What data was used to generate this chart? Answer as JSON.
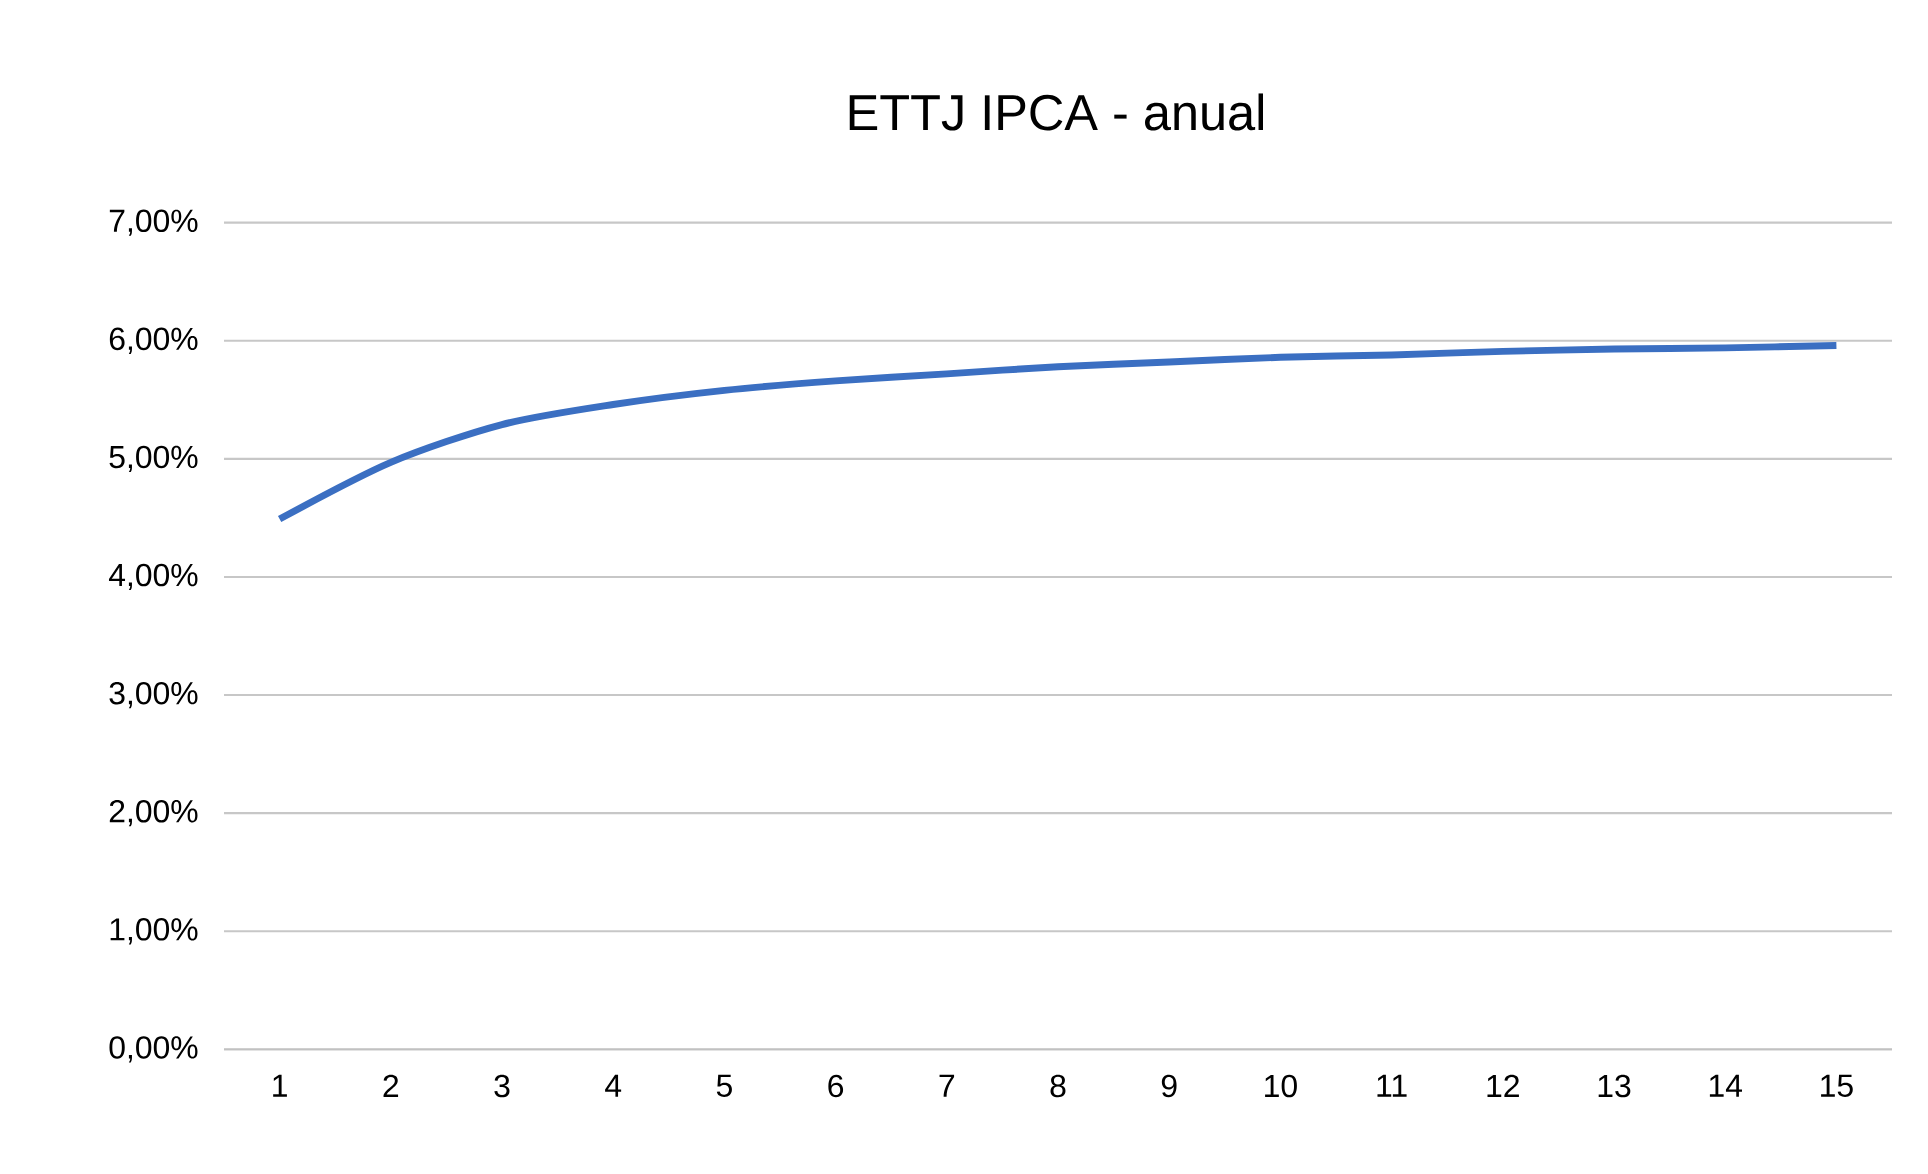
{
  "chart_data": {
    "type": "line",
    "title": "ETTJ IPCA - anual",
    "categories": [
      "1",
      "2",
      "3",
      "4",
      "5",
      "6",
      "7",
      "8",
      "9",
      "10",
      "11",
      "12",
      "13",
      "14",
      "15"
    ],
    "series": [
      {
        "color": "#3b6fc2",
        "values": [
          4.49,
          4.97,
          5.29,
          5.46,
          5.58,
          5.66,
          5.72,
          5.78,
          5.82,
          5.86,
          5.88,
          5.91,
          5.93,
          5.94,
          5.96
        ]
      }
    ],
    "ylim": [
      0,
      7
    ],
    "yticks": [
      {
        "value": 0,
        "label": "0,00%"
      },
      {
        "value": 1,
        "label": "1,00%"
      },
      {
        "value": 2,
        "label": "2,00%"
      },
      {
        "value": 3,
        "label": "3,00%"
      },
      {
        "value": 4,
        "label": "4,00%"
      },
      {
        "value": 5,
        "label": "5,00%"
      },
      {
        "value": 6,
        "label": "6,00%"
      },
      {
        "value": 7,
        "label": "7,00%"
      }
    ],
    "grid": "y",
    "marker": "none",
    "line_style": "solid"
  }
}
